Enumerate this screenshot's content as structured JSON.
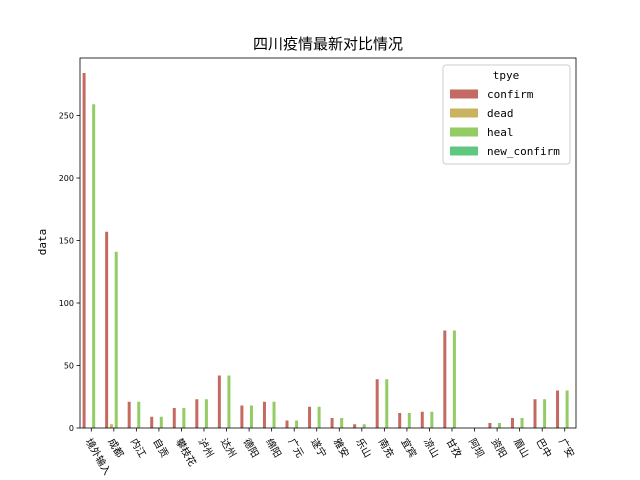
{
  "chart_data": {
    "type": "bar",
    "title": "四川疫情最新对比情况",
    "xlabel": "",
    "ylabel": "data",
    "ylim": [
      0,
      296
    ],
    "yticks": [
      0,
      50,
      100,
      150,
      200,
      250
    ],
    "categories": [
      "境外输入",
      "成都",
      "内江",
      "自贡",
      "攀枝花",
      "泸州",
      "达州",
      "德阳",
      "绵阳",
      "广元",
      "遂宁",
      "雅安",
      "乐山",
      "南充",
      "宜宾",
      "凉山",
      "甘孜",
      "阿坝",
      "资阳",
      "眉山",
      "巴中",
      "广安"
    ],
    "legend": {
      "title": "tpye",
      "position": "top-right"
    },
    "series": [
      {
        "name": "confirm",
        "color": "#c56a62",
        "values": [
          284,
          157,
          21,
          9,
          16,
          23,
          42,
          18,
          21,
          6,
          17,
          8,
          3,
          39,
          12,
          13,
          78,
          0,
          4,
          8,
          23,
          30
        ]
      },
      {
        "name": "dead",
        "color": "#c8b35e",
        "values": [
          0,
          3,
          0,
          0,
          0,
          0,
          0,
          0,
          0,
          0,
          0,
          0,
          0,
          0,
          0,
          0,
          0,
          0,
          0,
          0,
          0,
          0
        ]
      },
      {
        "name": "heal",
        "color": "#93cc65",
        "values": [
          259,
          141,
          21,
          9,
          16,
          23,
          42,
          18,
          21,
          6,
          17,
          8,
          3,
          39,
          12,
          13,
          78,
          0,
          4,
          8,
          23,
          30
        ]
      },
      {
        "name": "new_confirm",
        "color": "#5fc87e",
        "values": [
          0,
          0,
          0,
          0,
          0,
          0,
          0,
          0,
          0,
          0,
          0,
          0,
          0,
          0,
          0,
          0,
          0,
          0,
          0,
          0,
          0,
          0
        ]
      }
    ]
  }
}
